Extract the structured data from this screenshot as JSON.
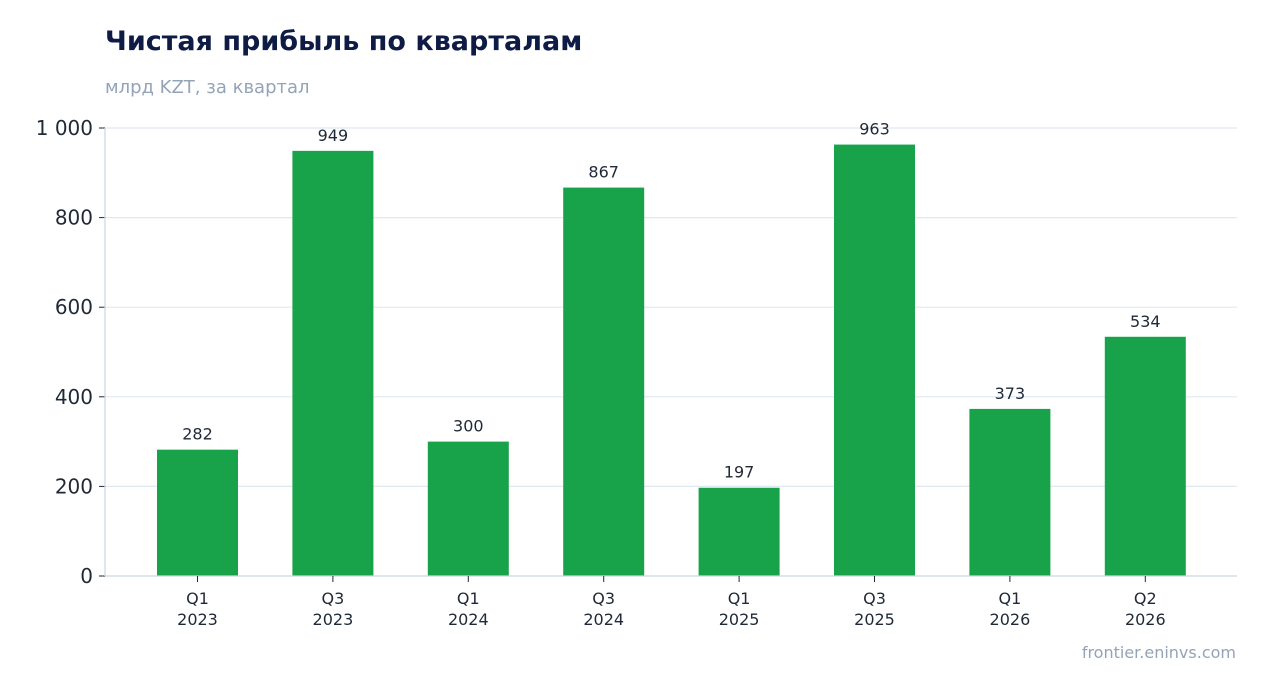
{
  "header": {
    "title": "Чистая прибыль по кварталам",
    "subtitle": "млрд KZT, за квартал"
  },
  "footer": {
    "source": "frontier.eninvs.com"
  },
  "colors": {
    "bar": "#18a34a",
    "grid": "#e2e8f0",
    "axis": "#cbd5e1",
    "title": "#0d1b45",
    "muted": "#94a3b8"
  },
  "chart_data": {
    "type": "bar",
    "title": "Чистая прибыль по кварталам",
    "subtitle": "млрд KZT, за квартал",
    "categories": [
      [
        "Q1",
        "2023"
      ],
      [
        "Q3",
        "2023"
      ],
      [
        "Q1",
        "2024"
      ],
      [
        "Q3",
        "2024"
      ],
      [
        "Q1",
        "2025"
      ],
      [
        "Q3",
        "2025"
      ],
      [
        "Q1",
        "2026"
      ],
      [
        "Q2",
        "2026"
      ]
    ],
    "values": [
      282,
      949,
      300,
      867,
      197,
      963,
      373,
      534
    ],
    "data_labels": [
      "282",
      "949",
      "300",
      "867",
      "197",
      "963",
      "373",
      "534"
    ],
    "ylim": [
      0,
      1000
    ],
    "yticks": [
      0,
      200,
      400,
      600,
      800,
      1000
    ],
    "ytick_labels": [
      "0",
      "200",
      "400",
      "600",
      "800",
      "1 000"
    ],
    "grid": true,
    "legend": "none"
  }
}
